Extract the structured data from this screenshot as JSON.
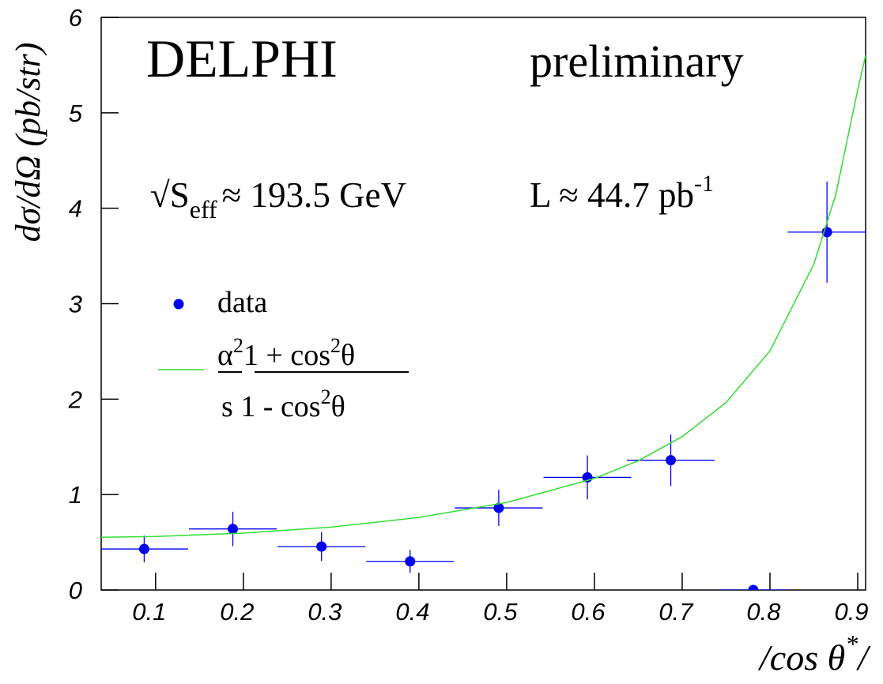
{
  "chart_data": {
    "type": "scatter",
    "title": "DELPHI",
    "subtitle": "preliminary",
    "energy_label": [
      "√S",
      "eff",
      "≈  193.5 GeV"
    ],
    "lumi_label": [
      "L ≈ 44.7 pb",
      "-1"
    ],
    "x_label": [
      "/cos θ",
      "*",
      "/"
    ],
    "y_label": "dσ/dΩ (pb/str)",
    "xlim": [
      0.038,
      0.909
    ],
    "ylim": [
      0,
      6
    ],
    "xticks": [
      0.1,
      0.2,
      0.3,
      0.4,
      0.5,
      0.6,
      0.7,
      0.8,
      0.9
    ],
    "yticks": [
      0,
      1,
      2,
      3,
      4,
      5,
      6
    ],
    "series": [
      {
        "name": "data",
        "color": "#0000ee",
        "x": [
          0.087,
          0.188,
          0.289,
          0.39,
          0.491,
          0.592,
          0.687,
          0.781,
          0.865
        ],
        "values": [
          0.43,
          0.64,
          0.455,
          0.3,
          0.86,
          1.18,
          1.36,
          0,
          3.75
        ],
        "errors": [
          0.14,
          0.18,
          0.15,
          0.12,
          0.19,
          0.23,
          0.27,
          0,
          0.53
        ],
        "xerr": [
          0.05,
          0.05,
          0.05,
          0.05,
          0.05,
          0.05,
          0.05,
          0.04,
          0.045
        ]
      },
      {
        "name": {
          "numerator": [
            "α",
            "2",
            "1",
            " + cos",
            "2",
            "θ"
          ],
          "denominator": [
            "s 1  - cos",
            "2",
            "θ"
          ]
        },
        "color": "#33dd33",
        "x": [
          0.038,
          0.1,
          0.2,
          0.3,
          0.4,
          0.5,
          0.6,
          0.65,
          0.7,
          0.75,
          0.8,
          0.85,
          0.875,
          0.9,
          0.909
        ],
        "values": [
          0.552,
          0.561,
          0.596,
          0.659,
          0.76,
          0.917,
          1.169,
          1.355,
          1.607,
          1.964,
          2.506,
          3.414,
          4.143,
          5.24,
          5.6
        ]
      }
    ]
  }
}
